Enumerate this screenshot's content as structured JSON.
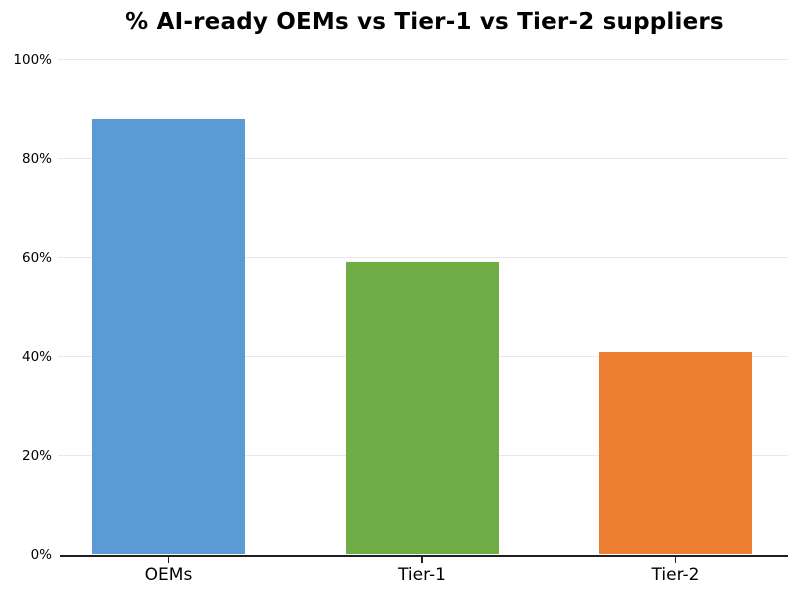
{
  "chart_data": {
    "type": "bar",
    "title": "% AI-ready OEMs vs Tier-1 vs Tier-2 suppliers",
    "categories": [
      "OEMs",
      "Tier-1",
      "Tier-2"
    ],
    "values": [
      88,
      59,
      41
    ],
    "bar_colors": [
      "#5b9bd5",
      "#70ad47",
      "#ed7d31"
    ],
    "xlabel": "",
    "ylabel": "",
    "ylim": [
      0,
      100
    ],
    "yticks": [
      0,
      20,
      40,
      60,
      80,
      100
    ],
    "ytick_labels": [
      "0%",
      "20%",
      "40%",
      "60%",
      "80%",
      "100%"
    ],
    "grid": "horizontal",
    "legend": "none"
  },
  "colors": {
    "gridline": "#e8e8e8",
    "axis": "#1f1f1f",
    "text": "#000000",
    "background": "#ffffff"
  }
}
